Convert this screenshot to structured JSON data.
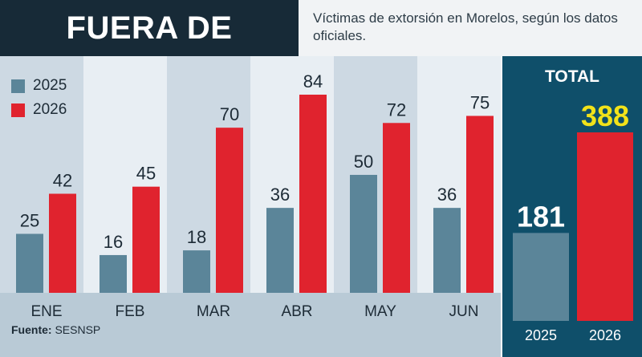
{
  "header": {
    "title": "FUERA DE CONTROL",
    "subtitle": "Víctimas de extorsión en Morelos, según los datos oficiales."
  },
  "legend": [
    {
      "label": "2025",
      "color": "#5b8599"
    },
    {
      "label": "2026",
      "color": "#e0232e"
    }
  ],
  "source": {
    "key": "Fuente:",
    "value": "SESNSP"
  },
  "total": {
    "title": "TOTAL",
    "highlight_color": "#f2e21a"
  },
  "chart_data": [
    {
      "type": "bar",
      "categories": [
        "ENE",
        "FEB",
        "MAR",
        "ABR",
        "MAY",
        "JUN"
      ],
      "series": [
        {
          "name": "2025",
          "values": [
            25,
            16,
            18,
            36,
            50,
            36
          ],
          "color": "#5b8599"
        },
        {
          "name": "2026",
          "values": [
            42,
            45,
            70,
            84,
            72,
            75
          ],
          "color": "#e0232e"
        }
      ],
      "ylim": [
        0,
        84
      ]
    },
    {
      "type": "bar",
      "title": "TOTAL",
      "categories": [
        "2025",
        "2026"
      ],
      "values": [
        181,
        388
      ],
      "colors": [
        "#5b8599",
        "#e0232e"
      ],
      "ylim": [
        0,
        388
      ]
    }
  ]
}
